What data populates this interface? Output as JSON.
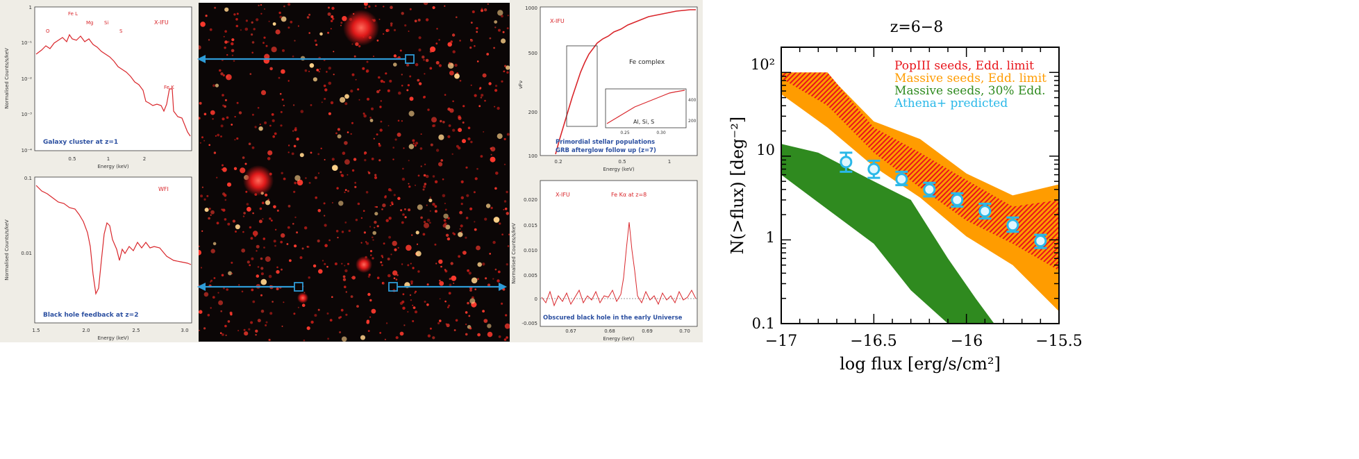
{
  "left_panels": {
    "top": {
      "ylabel": "Normalised Counts/s/keV",
      "xlabel": "Energy (keV)",
      "instrument": "X-IFU",
      "caption": "Galaxy cluster at z=1",
      "line_labels": [
        "O",
        "Fe L",
        "Mg",
        "Si",
        "S",
        "Fe K"
      ],
      "yticks": [
        "1",
        "10⁻¹",
        "10⁻²",
        "10⁻³",
        "10⁻⁴"
      ],
      "xticks": [
        "0.5",
        "1",
        "2"
      ]
    },
    "bottom": {
      "ylabel": "Normalised Counts/s/keV",
      "xlabel": "Energy (keV)",
      "instrument": "WFI",
      "caption": "Black hole feedback at z=2",
      "yticks": [
        "0.1",
        "0.01"
      ],
      "xticks": [
        "1.5",
        "2.0",
        "2.5",
        "3.0"
      ]
    }
  },
  "right_panels": {
    "top": {
      "ylabel": "νFν",
      "xlabel": "Energy (keV)",
      "instrument": "X-IFU",
      "annotation": "Fe complex",
      "inset_label": "Al, Si, S",
      "caption_line1": "Primordial stellar populations",
      "caption_line2": "GRB afterglow follow up (z=7)",
      "yticks": [
        "1000",
        "500",
        "200",
        "100"
      ],
      "xticks": [
        "0.2",
        "0.5",
        "1"
      ],
      "inset_xticks": [
        "0.25",
        "0.30"
      ],
      "inset_yticks": [
        "400",
        "200"
      ]
    },
    "bottom": {
      "ylabel": "Normalised Counts/s/keV",
      "xlabel": "Energy (keV)",
      "instrument": "X-IFU",
      "annotation": "Fe Kα at z=8",
      "caption": "Obscured black hole in the early Universe",
      "yticks": [
        "0.020",
        "0.015",
        "0.010",
        "0.005",
        "0",
        "-0.005"
      ],
      "xticks": [
        "0.67",
        "0.68",
        "0.69",
        "0.70"
      ]
    }
  },
  "colors": {
    "spectrum": "#d9262b",
    "caption": "#2b4fa0",
    "arrow": "#2e9bd6",
    "popIII": "#e8151b",
    "massive_edd": "#ff9c00",
    "massive_30": "#2f8a1f",
    "athena": "#2ab8e8"
  },
  "chart_data": {
    "type": "area",
    "title": "z=6−8",
    "xlabel": "log flux [erg/s/cm²]",
    "ylabel": "N(>flux) [deg⁻²]",
    "xlim": [
      -17,
      -15.5
    ],
    "ylim": [
      0.1,
      200
    ],
    "yscale": "log",
    "xticks": [
      "−17",
      "−16.5",
      "−16",
      "−15.5"
    ],
    "yticks": [
      "0.1",
      "1",
      "10",
      "10²"
    ],
    "legend_position": "top-right",
    "series": [
      {
        "name": "Massive seeds, Edd. limit",
        "kind": "band",
        "x": [
          -17,
          -16.75,
          -16.5,
          -16.25,
          -16.0,
          -15.75,
          -15.5
        ],
        "lower": [
          55,
          22,
          7.5,
          3.2,
          1.1,
          0.5,
          0.14
        ],
        "upper": [
          100,
          95,
          26,
          16,
          6.2,
          3.4,
          4.6
        ]
      },
      {
        "name": "PopIII seeds, Edd. limit",
        "kind": "band",
        "x": [
          -17,
          -16.75,
          -16.5,
          -16.25,
          -16.0,
          -15.75,
          -15.5
        ],
        "lower": [
          85,
          40,
          11,
          4.2,
          1.7,
          0.9,
          0.43
        ],
        "upper": [
          100,
          100,
          22,
          11,
          5.2,
          2.5,
          3.0
        ]
      },
      {
        "name": "Massive seeds, 30% Edd.",
        "kind": "band",
        "x": [
          -17,
          -16.8,
          -16.5,
          -16.3,
          -16.1,
          -15.95,
          -15.85
        ],
        "lower": [
          6,
          2.8,
          0.9,
          0.25,
          0.1,
          0.1,
          0.1
        ],
        "upper": [
          14,
          11,
          5,
          3,
          0.6,
          0.2,
          0.1
        ]
      },
      {
        "name": "Athena+ predicted",
        "kind": "points",
        "x": [
          -16.65,
          -16.5,
          -16.35,
          -16.2,
          -16.05,
          -15.9,
          -15.75,
          -15.6
        ],
        "y": [
          8.5,
          7.0,
          5.3,
          4.0,
          3.0,
          2.2,
          1.5,
          0.97
        ],
        "yerr_low": [
          6.5,
          5.5,
          4.5,
          3.3,
          2.5,
          1.8,
          1.25,
          0.8
        ],
        "yerr_high": [
          11,
          8.8,
          6.5,
          4.8,
          3.6,
          2.7,
          1.85,
          1.15
        ]
      }
    ]
  }
}
